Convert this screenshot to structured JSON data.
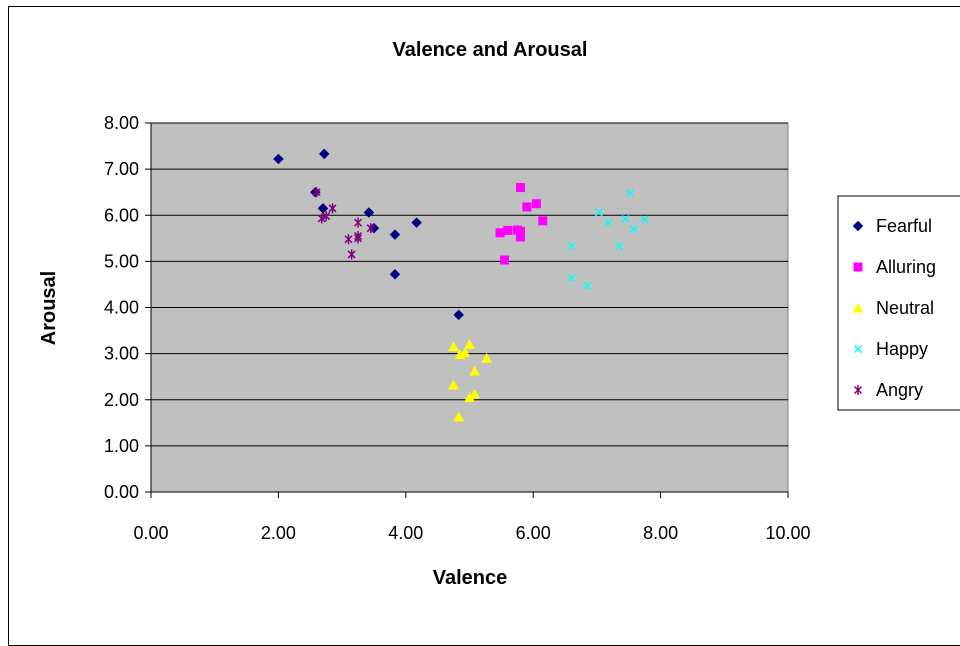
{
  "chart_data": {
    "type": "scatter",
    "title": "Valence and Arousal",
    "xlabel": "Valence",
    "ylabel": "Arousal",
    "xlim": [
      0,
      10
    ],
    "ylim": [
      0,
      8
    ],
    "x_ticks": [
      "0.00",
      "2.00",
      "4.00",
      "6.00",
      "8.00",
      "10.00"
    ],
    "y_ticks": [
      "0.00",
      "1.00",
      "2.00",
      "3.00",
      "4.00",
      "5.00",
      "6.00",
      "7.00",
      "8.00"
    ],
    "grid": "horizontal",
    "plot_background": "#c0c0c0",
    "legend_position": "right",
    "series": [
      {
        "name": "Fearful",
        "color": "#000080",
        "marker": "diamond",
        "points": [
          [
            2.0,
            7.22
          ],
          [
            2.72,
            7.33
          ],
          [
            2.58,
            6.5
          ],
          [
            2.7,
            6.15
          ],
          [
            3.42,
            6.06
          ],
          [
            3.5,
            5.72
          ],
          [
            3.83,
            5.58
          ],
          [
            4.17,
            5.84
          ],
          [
            3.83,
            4.72
          ],
          [
            4.83,
            3.84
          ]
        ]
      },
      {
        "name": "Alluring",
        "color": "#ff00ff",
        "marker": "square",
        "points": [
          [
            5.8,
            6.6
          ],
          [
            5.9,
            6.18
          ],
          [
            6.05,
            6.25
          ],
          [
            6.15,
            5.88
          ],
          [
            5.48,
            5.62
          ],
          [
            5.6,
            5.67
          ],
          [
            5.75,
            5.68
          ],
          [
            5.8,
            5.65
          ],
          [
            5.8,
            5.53
          ],
          [
            5.55,
            5.03
          ]
        ]
      },
      {
        "name": "Neutral",
        "color": "#ffff00",
        "marker": "triangle",
        "points": [
          [
            4.75,
            3.15
          ],
          [
            4.85,
            2.98
          ],
          [
            4.93,
            3.02
          ],
          [
            5.0,
            3.2
          ],
          [
            5.27,
            2.9
          ],
          [
            5.08,
            2.62
          ],
          [
            4.75,
            2.32
          ],
          [
            5.08,
            2.12
          ],
          [
            5.0,
            2.05
          ],
          [
            4.83,
            1.63
          ]
        ]
      },
      {
        "name": "Happy",
        "color": "#00ffff",
        "marker": "x",
        "points": [
          [
            7.03,
            6.06
          ],
          [
            7.18,
            5.84
          ],
          [
            7.45,
            5.92
          ],
          [
            7.52,
            6.48
          ],
          [
            7.58,
            5.7
          ],
          [
            7.75,
            5.91
          ],
          [
            6.6,
            5.33
          ],
          [
            7.35,
            5.33
          ],
          [
            6.6,
            4.64
          ],
          [
            6.85,
            4.47
          ]
        ]
      },
      {
        "name": "Angry",
        "color": "#800080",
        "marker": "asterisk",
        "points": [
          [
            2.6,
            6.5
          ],
          [
            2.68,
            5.93
          ],
          [
            2.75,
            5.98
          ],
          [
            2.85,
            6.15
          ],
          [
            3.25,
            5.84
          ],
          [
            3.25,
            5.55
          ],
          [
            3.25,
            5.5
          ],
          [
            3.1,
            5.48
          ],
          [
            3.45,
            5.72
          ],
          [
            3.15,
            5.15
          ]
        ]
      }
    ]
  }
}
